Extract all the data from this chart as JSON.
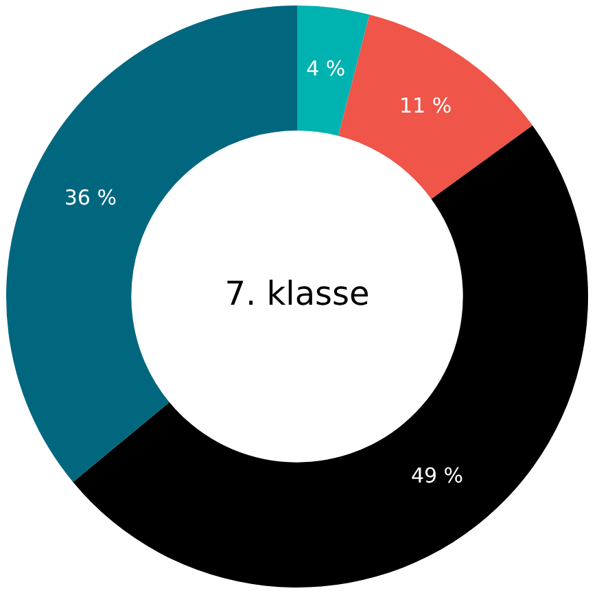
{
  "chart_data": {
    "type": "donut",
    "title": "7. klasse",
    "categories": [
      null,
      null,
      null,
      null
    ],
    "values": [
      4,
      11,
      49,
      36
    ],
    "colors": [
      "#00b2b0",
      "#ef5548",
      "#000000",
      "#00677f"
    ],
    "value_labels": [
      "4 %",
      "11 %",
      "49 %",
      "36 %"
    ],
    "legend": false
  }
}
